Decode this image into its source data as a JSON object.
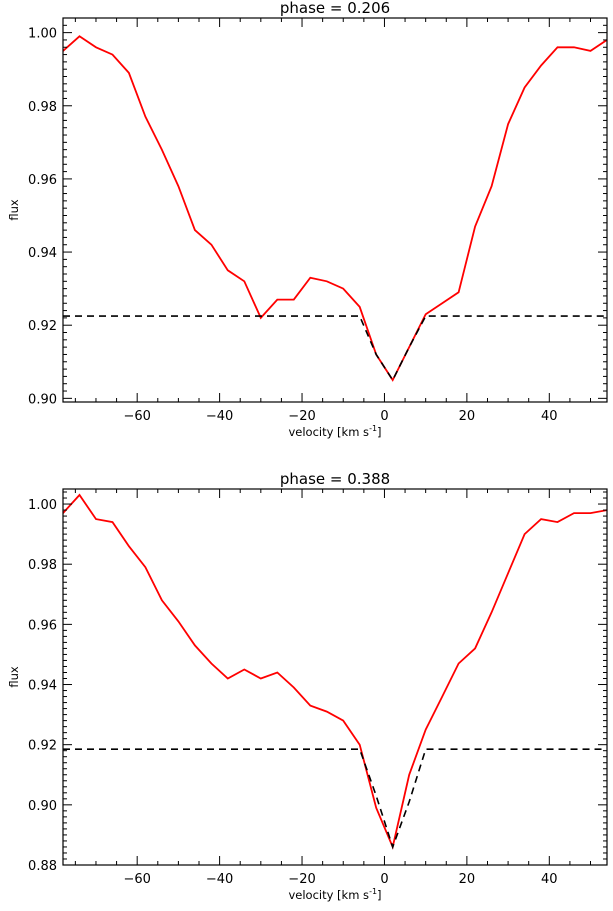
{
  "chart_data": [
    {
      "type": "line",
      "title": "phase = 0.206",
      "xlabel": "velocity [km s",
      "xlabel_sup": "-1",
      "xlabel_end": "]",
      "ylabel": "flux",
      "xlim": [
        -78,
        54
      ],
      "ylim": [
        0.899,
        1.004
      ],
      "xticks": [
        -60,
        -40,
        -20,
        0,
        20,
        40
      ],
      "yticks": [
        "0.90",
        "0.92",
        "0.94",
        "0.96",
        "0.98",
        "1.00"
      ],
      "series": [
        {
          "color": "#ff0000",
          "style": "solid",
          "x": [
            -78,
            -74,
            -70,
            -66,
            -62,
            -58,
            -54,
            -50,
            -46,
            -42,
            -38,
            -34,
            -30,
            -26,
            -22,
            -18,
            -14,
            -10,
            -6,
            -2,
            2,
            6,
            10,
            14,
            18,
            22,
            26,
            30,
            34,
            38,
            42,
            46,
            50,
            54
          ],
          "y": [
            0.995,
            0.999,
            0.996,
            0.994,
            0.989,
            0.977,
            0.968,
            0.958,
            0.946,
            0.942,
            0.935,
            0.932,
            0.922,
            0.927,
            0.927,
            0.933,
            0.932,
            0.93,
            0.925,
            0.912,
            0.905,
            0.914,
            0.923,
            0.926,
            0.929,
            0.947,
            0.958,
            0.975,
            0.985,
            0.991,
            0.996,
            0.996,
            0.995,
            0.998
          ]
        },
        {
          "color": "#000000",
          "style": "dashed",
          "x": [
            -78,
            -6,
            -2,
            2,
            6,
            10,
            54
          ],
          "y": [
            0.9225,
            0.9225,
            0.912,
            0.905,
            0.914,
            0.9225,
            0.9225
          ]
        }
      ]
    },
    {
      "type": "line",
      "title": "phase = 0.388",
      "xlabel": "velocity [km s",
      "xlabel_sup": "-1",
      "xlabel_end": "]",
      "ylabel": "flux",
      "xlim": [
        -78,
        54
      ],
      "ylim": [
        0.88,
        1.005
      ],
      "xticks": [
        -60,
        -40,
        -20,
        0,
        20,
        40
      ],
      "yticks": [
        "0.88",
        "0.90",
        "0.92",
        "0.94",
        "0.96",
        "0.98",
        "1.00"
      ],
      "series": [
        {
          "color": "#ff0000",
          "style": "solid",
          "x": [
            -78,
            -74,
            -70,
            -66,
            -62,
            -58,
            -54,
            -50,
            -46,
            -42,
            -38,
            -34,
            -30,
            -26,
            -22,
            -18,
            -14,
            -10,
            -6,
            -2,
            2,
            6,
            10,
            14,
            18,
            22,
            26,
            30,
            34,
            38,
            42,
            46,
            50,
            54
          ],
          "y": [
            0.997,
            1.003,
            0.995,
            0.994,
            0.986,
            0.979,
            0.968,
            0.961,
            0.953,
            0.947,
            0.942,
            0.945,
            0.942,
            0.944,
            0.939,
            0.933,
            0.931,
            0.928,
            0.92,
            0.899,
            0.886,
            0.91,
            0.925,
            0.936,
            0.947,
            0.952,
            0.964,
            0.977,
            0.99,
            0.995,
            0.994,
            0.997,
            0.997,
            0.998
          ]
        },
        {
          "color": "#000000",
          "style": "dashed",
          "x": [
            -78,
            -6,
            -2,
            2,
            6,
            10,
            54
          ],
          "y": [
            0.9185,
            0.9185,
            0.903,
            0.886,
            0.901,
            0.9185,
            0.9185
          ]
        }
      ]
    }
  ]
}
